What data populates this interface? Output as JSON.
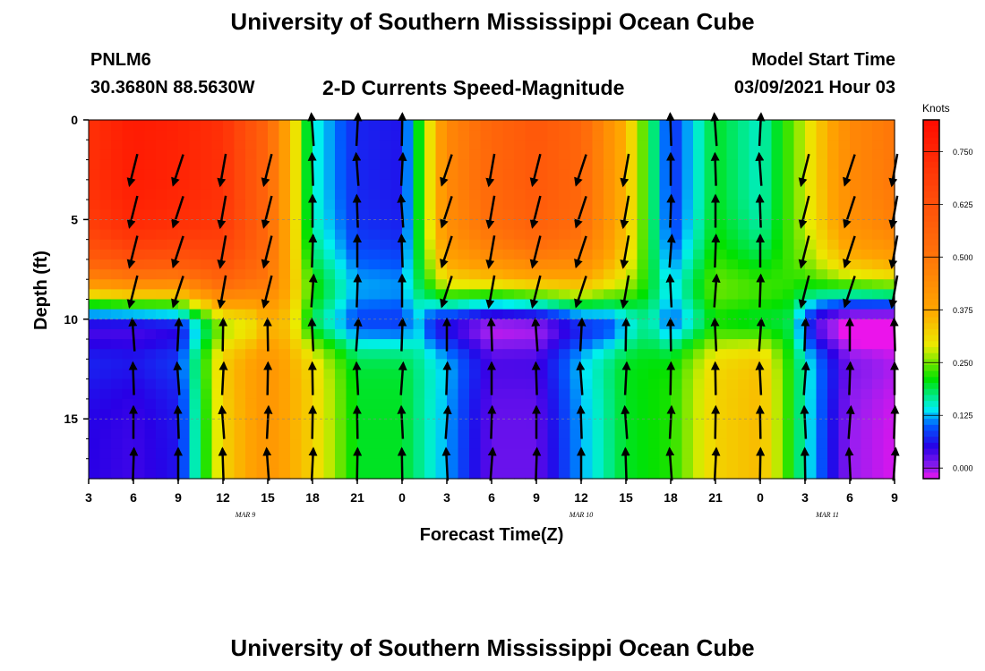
{
  "titles": {
    "top": "University of Southern Mississippi Ocean Cube",
    "bottom": "University of Southern Mississippi Ocean Cube",
    "station": "PNLM6",
    "coordinates": "30.3680N 88.5630W",
    "model_start_label": "Model Start Time",
    "model_start_value": "03/09/2021 Hour 03"
  },
  "chart_data": {
    "type": "heatmap",
    "title": "2-D Currents Speed-Magnitude",
    "xlabel": "Forecast Time(Z)",
    "ylabel": "Depth (ft)",
    "x_ticks": [
      "3",
      "6",
      "9",
      "12",
      "15",
      "18",
      "21",
      "0",
      "3",
      "6",
      "9",
      "12",
      "15",
      "18",
      "21",
      "0",
      "3",
      "6",
      "9"
    ],
    "day_labels": [
      {
        "label": "MAR 9",
        "at_tick": 3.5
      },
      {
        "label": "MAR 10",
        "at_tick": 11
      },
      {
        "label": "MAR 11",
        "at_tick": 16.5
      }
    ],
    "y_ticks": [
      0,
      5,
      10,
      15
    ],
    "ylim": [
      0,
      18
    ],
    "y_inverted": true,
    "colorbar": {
      "label": "Knots",
      "ticks": [
        "0.750",
        "0.625",
        "0.500",
        "0.375",
        "0.250",
        "0.125",
        "0.000"
      ],
      "range": [
        -0.025,
        0.825
      ]
    },
    "grid": "horizontal",
    "time_step_hours": 3,
    "surface_speed_knots": [
      0.72,
      0.78,
      0.76,
      0.72,
      0.55,
      0.15,
      0.07,
      0.06,
      0.45,
      0.55,
      0.6,
      0.55,
      0.35,
      0.07,
      0.2,
      0.15,
      0.28,
      0.45,
      0.5
    ],
    "bottom_speed_knots": [
      0.05,
      0.04,
      0.06,
      0.32,
      0.42,
      0.32,
      0.2,
      0.2,
      0.12,
      0.02,
      0.02,
      0.12,
      0.2,
      0.22,
      0.32,
      0.35,
      0.15,
      0.0,
      -0.02
    ]
  }
}
